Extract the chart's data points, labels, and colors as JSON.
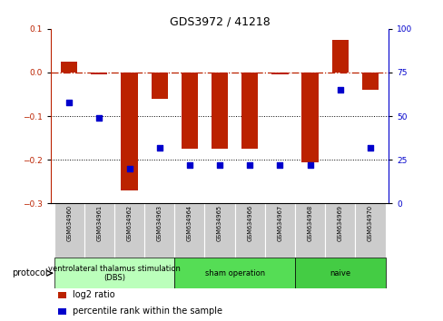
{
  "title": "GDS3972 / 41218",
  "samples": [
    "GSM634960",
    "GSM634961",
    "GSM634962",
    "GSM634963",
    "GSM634964",
    "GSM634965",
    "GSM634966",
    "GSM634967",
    "GSM634968",
    "GSM634969",
    "GSM634970"
  ],
  "log2_ratio": [
    0.025,
    -0.005,
    -0.27,
    -0.06,
    -0.175,
    -0.175,
    -0.175,
    -0.005,
    -0.205,
    0.075,
    -0.04
  ],
  "percentile_rank": [
    58,
    49,
    20,
    32,
    22,
    22,
    22,
    22,
    22,
    65,
    32
  ],
  "ylim_left": [
    -0.3,
    0.1
  ],
  "ylim_right": [
    0,
    100
  ],
  "yticks_left": [
    -0.3,
    -0.2,
    -0.1,
    0.0,
    0.1
  ],
  "yticks_right": [
    0,
    25,
    50,
    75,
    100
  ],
  "dotted_lines": [
    -0.1,
    -0.2
  ],
  "bar_color": "#bb2200",
  "dot_color": "#0000cc",
  "dbs_indices": [
    0,
    1,
    2,
    3
  ],
  "sham_indices": [
    4,
    5,
    6,
    7
  ],
  "naive_indices": [
    8,
    9,
    10
  ],
  "dbs_label": "ventrolateral thalamus stimulation\n(DBS)",
  "sham_label": "sham operation",
  "naive_label": "naive",
  "group_colors": [
    "#bbffbb",
    "#55dd55",
    "#44cc44"
  ],
  "legend_items": [
    {
      "label": "log2 ratio",
      "color": "#bb2200"
    },
    {
      "label": "percentile rank within the sample",
      "color": "#0000cc"
    }
  ],
  "protocol_label": "protocol",
  "bg_color": "#ffffff",
  "right_axis_color": "#0000cc",
  "left_axis_color": "#bb2200",
  "sample_box_color": "#cccccc",
  "title_fontsize": 9,
  "tick_fontsize": 6.5,
  "sample_fontsize": 4.8,
  "group_fontsize": 6,
  "legend_fontsize": 7
}
